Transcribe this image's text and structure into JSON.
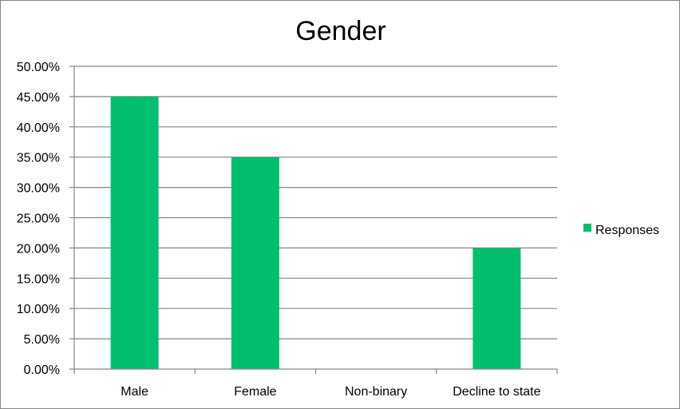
{
  "chart_data": {
    "type": "bar",
    "title": "Gender",
    "categories": [
      "Male",
      "Female",
      "Non-binary",
      "Decline to state"
    ],
    "series": [
      {
        "name": "Responses",
        "values": [
          0.45,
          0.35,
          0,
          0.2
        ],
        "color": "#00BF6F"
      }
    ],
    "ylim": [
      0,
      0.5
    ],
    "ytick_values": [
      0,
      0.05,
      0.1,
      0.15,
      0.2,
      0.25,
      0.3,
      0.35,
      0.4,
      0.45,
      0.5
    ],
    "ytick_labels": [
      "0.00%",
      "5.00%",
      "10.00%",
      "15.00%",
      "20.00%",
      "25.00%",
      "30.00%",
      "35.00%",
      "40.00%",
      "45.00%",
      "50.00%"
    ],
    "xlabel": "",
    "ylabel": "",
    "grid": true,
    "legend_position": "right",
    "colors": {
      "gridline": "#868686",
      "axis": "#868686",
      "frame": "#868686"
    }
  }
}
